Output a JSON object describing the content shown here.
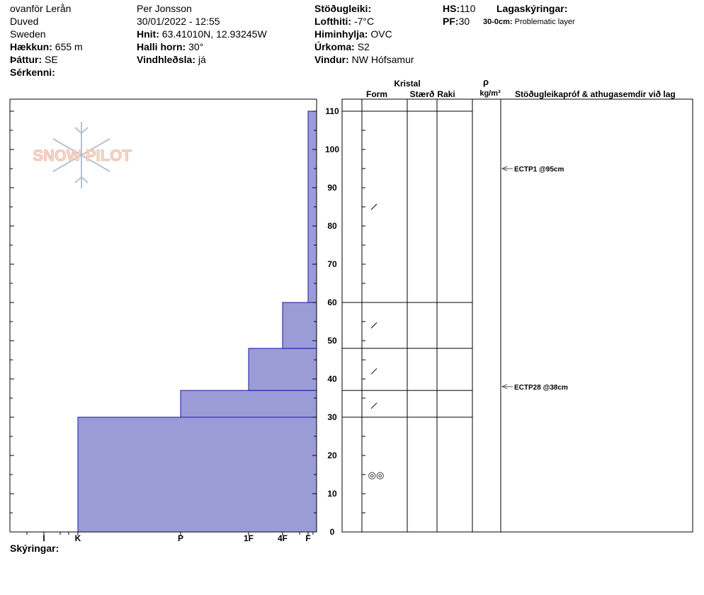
{
  "header": {
    "location": "ovanför Lerån",
    "area": "Duved",
    "country": "Sweden",
    "elevation_label": "Hækkun:",
    "elevation": "655 m",
    "aspect_label": "Þáttur:",
    "aspect": "SE",
    "features_label": "Sérkenni:",
    "observer": "Per Jonsson",
    "datetime": "30/01/2022 - 12:55",
    "coords_label": "Hnit:",
    "coords": "63.41010N, 12.93245W",
    "slope_label": "Halli horn:",
    "slope": "30°",
    "wind_loading_label": "Vindhleðsla:",
    "wind_loading": "já",
    "stability_label": "Stöðugleiki:",
    "stability": "",
    "air_temp_label": "Lofthiti:",
    "air_temp": "-7°C",
    "sky_label": "Himinhylja:",
    "sky": "OVC",
    "precip_label": "Úrkoma:",
    "precip": "S2",
    "wind_label": "Vindur:",
    "wind": "NW Hófsamur",
    "hs_label": "HS:",
    "hs": "110",
    "pf_label": "PF:",
    "pf": "30",
    "layer_notes_label": "Lagaskýringar:",
    "layer_note_range": "30-0cm:",
    "layer_note_text": "Problematic layer"
  },
  "columns": {
    "crystal": "Kristal",
    "form": "Form",
    "size": "Stærð",
    "moisture": "Raki",
    "density_symbol": "ρ",
    "density_unit": "kg/m³",
    "tests": "Stöðugleikapróf & athugasemdir við lag"
  },
  "footer": {
    "notes_label": "Skýringar:"
  },
  "logo_text": "SNOW PILOT",
  "colors": {
    "hardness_fill": "#9b9bd7",
    "hardness_stroke": "#1a1aa0",
    "arrow": "#555555"
  },
  "chart_data": {
    "type": "bar",
    "orientation": "horizontal-steps",
    "y_axis": {
      "unit": "cm",
      "min": 0,
      "max": 110,
      "ticks": [
        0,
        10,
        20,
        30,
        40,
        50,
        60,
        70,
        80,
        90,
        100,
        110
      ]
    },
    "x_axis": {
      "labels": [
        "I",
        "K",
        "P",
        "1F",
        "4F",
        "F"
      ]
    },
    "layers": [
      {
        "top": 30,
        "bottom": 0,
        "hardness": "K"
      },
      {
        "top": 37,
        "bottom": 30,
        "hardness": "P"
      },
      {
        "top": 48,
        "bottom": 37,
        "hardness": "1F"
      },
      {
        "top": 60,
        "bottom": 48,
        "hardness": "4F"
      },
      {
        "top": 110,
        "bottom": 60,
        "hardness": "F"
      }
    ],
    "layer_boundaries": [
      110,
      60,
      48,
      37,
      30
    ],
    "grain_forms": [
      {
        "depth": 85,
        "symbol": "/"
      },
      {
        "depth": 54,
        "symbol": "/"
      },
      {
        "depth": 42,
        "symbol": "/"
      },
      {
        "depth": 33,
        "symbol": "/"
      },
      {
        "depth": 15,
        "symbol": "◎◎"
      }
    ],
    "tests": [
      {
        "depth": 95,
        "label": "ECTP1 @95cm"
      },
      {
        "depth": 38,
        "label": "ECTP28 @38cm"
      }
    ]
  }
}
